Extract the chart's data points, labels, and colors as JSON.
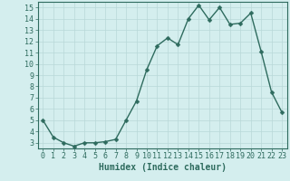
{
  "x": [
    0,
    1,
    2,
    3,
    4,
    5,
    6,
    7,
    8,
    9,
    10,
    11,
    12,
    13,
    14,
    15,
    16,
    17,
    18,
    19,
    20,
    21,
    22,
    23
  ],
  "y": [
    5.0,
    3.5,
    3.0,
    2.7,
    3.0,
    3.0,
    3.1,
    3.3,
    5.0,
    6.7,
    9.5,
    11.6,
    12.3,
    11.7,
    14.0,
    15.2,
    13.9,
    15.0,
    13.5,
    13.6,
    14.5,
    11.1,
    7.5,
    5.7
  ],
  "xlabel": "Humidex (Indice chaleur)",
  "xlim": [
    -0.5,
    23.5
  ],
  "ylim": [
    2.5,
    15.5
  ],
  "yticks": [
    3,
    4,
    5,
    6,
    7,
    8,
    9,
    10,
    11,
    12,
    13,
    14,
    15
  ],
  "xticks": [
    0,
    1,
    2,
    3,
    4,
    5,
    6,
    7,
    8,
    9,
    10,
    11,
    12,
    13,
    14,
    15,
    16,
    17,
    18,
    19,
    20,
    21,
    22,
    23
  ],
  "line_color": "#2e6b5e",
  "marker_color": "#2e6b5e",
  "bg_color": "#d4eeee",
  "grid_color": "#b8d8d8",
  "border_color": "#2e6b5e",
  "xlabel_fontsize": 7,
  "tick_fontsize": 6,
  "line_width": 1.0,
  "marker_size": 2.5
}
